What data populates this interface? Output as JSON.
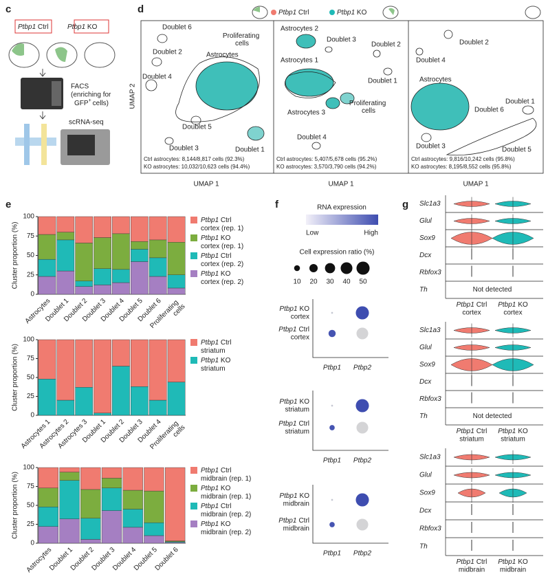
{
  "panel_labels": [
    "c",
    "d",
    "e",
    "f",
    "g"
  ],
  "panel_c": {
    "groups": [
      "Ptbp1 Ctrl",
      "Ptbp1 KO"
    ],
    "facs": [
      "FACS",
      "(enriching for"
    ],
    "gfp": "GFP",
    "sup": "+",
    "cells": "cells)",
    "seq": "scRNA-seq"
  },
  "panel_d": {
    "legend": [
      "Ptbp1 Ctrl",
      "Ptbp1 KO"
    ],
    "y_label": "UMAP 2",
    "x_label": "UMAP 1",
    "plots": [
      {
        "clusters": [
          "Doublet 6",
          "Doublet 2",
          "Doublet 4",
          "Astrocytes",
          "Proliferating cells",
          "Doublet 5",
          "Doublet 3",
          "Doublet 1"
        ],
        "stats": [
          "Ctrl astrocytes: 8,144/8,817 cells (92.3%)",
          "KO astrocytes: 10,032/10,623 cells (94.4%)"
        ]
      },
      {
        "clusters": [
          "Astrocytes 2",
          "Doublet 3",
          "Doublet 2",
          "Astrocytes 1",
          "Doublet 1",
          "Proliferating cells",
          "Astrocytes 3",
          "Doublet 4"
        ],
        "stats": [
          "Ctrl astrocytes: 5,407/5,678 cells (95.2%)",
          "KO astrocytes: 3,570/3,790 cells (94.2%)"
        ]
      },
      {
        "clusters": [
          "Doublet 2",
          "Doublet 4",
          "Astrocytes",
          "Doublet 1",
          "Doublet 6",
          "Doublet 3",
          "Doublet 5"
        ],
        "stats": [
          "Ctrl astrocytes: 9,816/10,242 cells (95.8%)",
          "KO astrocytes: 8,195/8,552 cells (95.8%)"
        ]
      }
    ]
  },
  "chart_data": [
    {
      "type": "bar",
      "stacked": true,
      "ylabel": "Cluster proportion (%)",
      "ylim": [
        0,
        100
      ],
      "yticks": [
        0,
        25,
        50,
        75,
        100
      ],
      "categories": [
        "Astrocytes",
        "Doublet 1",
        "Doublet 2",
        "Doublet 3",
        "Doublet 4",
        "Doublet 5",
        "Doublet 6",
        "Proliferating cells"
      ],
      "series": [
        {
          "name": "Ptbp1 Ctrl cortex (rep. 1)",
          "color": "#f07b70",
          "values": [
            23,
            20,
            34,
            27,
            22,
            32,
            30,
            33
          ]
        },
        {
          "name": "Ptbp1 KO cortex (rep. 1)",
          "color": "#7cad3f",
          "values": [
            32,
            10,
            49,
            40,
            46,
            10,
            23,
            42
          ]
        },
        {
          "name": "Ptbp1 Ctrl cortex (rep. 2)",
          "color": "#1fbab7",
          "values": [
            22,
            40,
            7,
            21,
            17,
            16,
            24,
            17
          ]
        },
        {
          "name": "Ptbp1 KO cortex (rep. 2)",
          "color": "#a57fc2",
          "values": [
            23,
            30,
            10,
            12,
            15,
            42,
            23,
            8
          ]
        }
      ]
    },
    {
      "type": "bar",
      "stacked": true,
      "ylabel": "Cluster proportion (%)",
      "ylim": [
        0,
        100
      ],
      "yticks": [
        0,
        25,
        50,
        75,
        100
      ],
      "categories": [
        "Astrocytes 1",
        "Astrocytes 2",
        "Astrocytes 3",
        "Doublet 1",
        "Doublet 2",
        "Doublet 3",
        "Doublet 4",
        "Proliferating cells"
      ],
      "series": [
        {
          "name": "Ptbp1 Ctrl striatum",
          "color": "#f07b70",
          "values": [
            52,
            80,
            63,
            97,
            35,
            62,
            80,
            56
          ]
        },
        {
          "name": "Ptbp1 KO striatum",
          "color": "#1fbab7",
          "values": [
            48,
            20,
            37,
            3,
            65,
            38,
            20,
            44
          ]
        }
      ]
    },
    {
      "type": "bar",
      "stacked": true,
      "ylabel": "Cluster proportion (%)",
      "ylim": [
        0,
        100
      ],
      "yticks": [
        0,
        25,
        50,
        75,
        100
      ],
      "categories": [
        "Astrocytes",
        "Doublet 1",
        "Doublet 2",
        "Doublet 3",
        "Doublet 4",
        "Doublet 5",
        "Doublet 6"
      ],
      "series": [
        {
          "name": "Ptbp1 Ctrl midbrain (rep. 1)",
          "color": "#f07b70",
          "values": [
            27,
            6,
            29,
            14,
            30,
            31,
            97
          ]
        },
        {
          "name": "Ptbp1 KO midbrain (rep. 1)",
          "color": "#7cad3f",
          "values": [
            25,
            11,
            38,
            13,
            25,
            42,
            1
          ]
        },
        {
          "name": "Ptbp1 Ctrl midbrain (rep. 2)",
          "color": "#1fbab7",
          "values": [
            26,
            51,
            28,
            30,
            24,
            17,
            1
          ]
        },
        {
          "name": "Ptbp1 KO midbrain (rep. 2)",
          "color": "#a57fc2",
          "values": [
            22,
            32,
            5,
            43,
            21,
            10,
            1
          ]
        }
      ]
    }
  ],
  "panel_f": {
    "legend_title": "RNA expression",
    "low": "Low",
    "high": "High",
    "size_title": "Cell expression ratio (%)",
    "size_ticks": [
      10,
      20,
      30,
      40,
      50
    ],
    "genes": [
      "Ptbp1",
      "Ptbp2"
    ],
    "plots": [
      {
        "rows": [
          {
            "gene": "Ptbp1",
            "group": "KO",
            "region": "cortex",
            "ratio": [
              1,
              50
            ],
            "expression": [
              0.1,
              1
            ]
          },
          {
            "gene": "Ptbp1",
            "group": "Ctrl",
            "region": "cortex",
            "ratio": [
              15,
              40
            ],
            "expression": [
              0.95,
              0
            ]
          }
        ]
      },
      {
        "rows": [
          {
            "gene": "Ptbp1",
            "group": "KO",
            "region": "striatum",
            "ratio": [
              1,
              50
            ],
            "expression": [
              0.1,
              1
            ]
          },
          {
            "gene": "Ptbp1",
            "group": "Ctrl",
            "region": "striatum",
            "ratio": [
              8,
              40
            ],
            "expression": [
              0.95,
              0
            ]
          }
        ]
      },
      {
        "rows": [
          {
            "gene": "Ptbp1",
            "group": "KO",
            "region": "midbrain",
            "ratio": [
              1,
              50
            ],
            "expression": [
              0.1,
              1
            ]
          },
          {
            "gene": "Ptbp1",
            "group": "Ctrl",
            "region": "midbrain",
            "ratio": [
              8,
              40
            ],
            "expression": [
              0.95,
              0
            ]
          }
        ]
      }
    ]
  },
  "panel_g": {
    "genes": [
      "Slc1a3",
      "Glul",
      "Sox9",
      "Dcx",
      "Rbfox3",
      "Th"
    ],
    "groups": [
      {
        "note": "Not detected",
        "cols": [
          {
            "gene": "Ptbp1",
            "group": "Ctrl",
            "region": "cortex"
          },
          {
            "gene": "Ptbp1",
            "group": "KO",
            "region": "cortex"
          }
        ]
      },
      {
        "note": "Not detected",
        "cols": [
          {
            "gene": "Ptbp1",
            "group": "Ctrl",
            "region": "striatum"
          },
          {
            "gene": "Ptbp1",
            "group": "KO",
            "region": "striatum"
          }
        ]
      },
      {
        "cols": [
          {
            "gene": "Ptbp1",
            "group": "Ctrl",
            "region": "midbrain"
          },
          {
            "gene": "Ptbp1",
            "group": "KO",
            "region": "midbrain"
          }
        ]
      }
    ]
  }
}
